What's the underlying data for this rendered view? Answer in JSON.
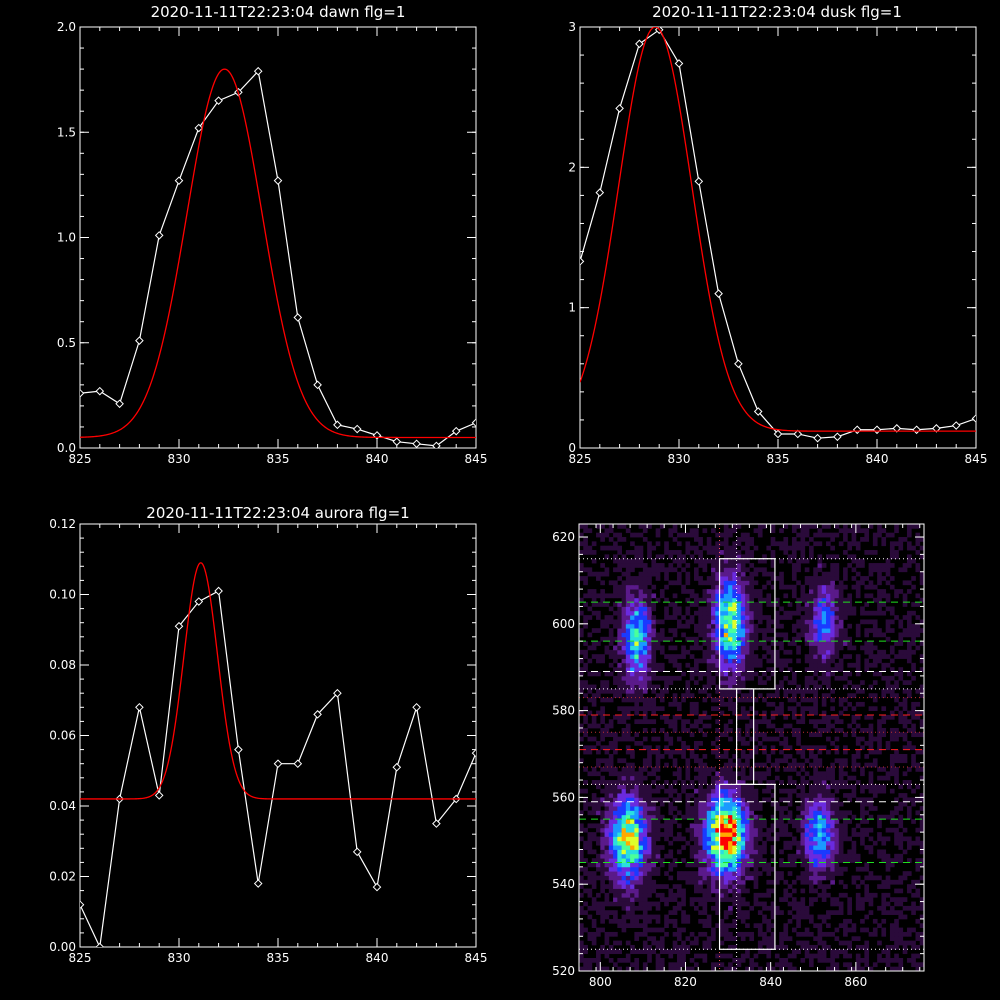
{
  "chart_data": [
    {
      "type": "line",
      "title": "2020-11-11T22:23:04 dawn flg=1",
      "xlim": [
        825,
        845
      ],
      "ylim": [
        0,
        2.0
      ],
      "xticks": [
        "825",
        "830",
        "835",
        "840",
        "845"
      ],
      "xtick_values": [
        825,
        830,
        835,
        840,
        845
      ],
      "yticks": [
        "0.0",
        "0.5",
        "1.0",
        "1.5",
        "2.0"
      ],
      "ytick_values": [
        0,
        0.5,
        1.0,
        1.5,
        2.0
      ],
      "series": [
        {
          "style": "data-diamonds",
          "color": "#ffffff",
          "x": [
            825,
            826,
            827,
            828,
            829,
            830,
            831,
            832,
            833,
            834,
            835,
            836,
            837,
            838,
            839,
            840,
            841,
            842,
            843,
            844,
            845
          ],
          "y": [
            0.26,
            0.27,
            0.21,
            0.51,
            1.01,
            1.27,
            1.52,
            1.65,
            1.69,
            1.79,
            1.27,
            0.62,
            0.3,
            0.11,
            0.09,
            0.06,
            0.03,
            0.02,
            0.01,
            0.08,
            0.12
          ]
        },
        {
          "style": "fit-curve",
          "color": "#ff0000",
          "fit": {
            "amplitude": 1.75,
            "center": 832.3,
            "sigma": 1.9,
            "baseline": 0.05
          },
          "x_range": [
            825,
            845
          ]
        }
      ]
    },
    {
      "type": "line",
      "title": "2020-11-11T22:23:04 dusk flg=1",
      "xlim": [
        825,
        845
      ],
      "ylim": [
        0,
        3
      ],
      "xticks": [
        "825",
        "830",
        "835",
        "840",
        "845"
      ],
      "xtick_values": [
        825,
        830,
        835,
        840,
        845
      ],
      "yticks": [
        "0",
        "1",
        "2",
        "3"
      ],
      "ytick_values": [
        0,
        1,
        2,
        3
      ],
      "series": [
        {
          "style": "data-diamonds",
          "color": "#ffffff",
          "x": [
            825,
            826,
            827,
            828,
            829,
            830,
            831,
            832,
            833,
            834,
            835,
            836,
            837,
            838,
            839,
            840,
            841,
            842,
            843,
            844,
            845
          ],
          "y": [
            1.33,
            1.82,
            2.42,
            2.88,
            2.98,
            2.74,
            1.9,
            1.1,
            0.6,
            0.26,
            0.1,
            0.1,
            0.07,
            0.08,
            0.13,
            0.13,
            0.14,
            0.13,
            0.14,
            0.16,
            0.21
          ]
        },
        {
          "style": "fit-curve",
          "color": "#ff0000",
          "fit": {
            "amplitude": 2.88,
            "center": 828.8,
            "sigma": 1.85,
            "baseline": 0.12
          },
          "x_range": [
            825,
            845
          ]
        }
      ]
    },
    {
      "type": "line",
      "title": "2020-11-11T22:23:04 aurora flg=1",
      "xlim": [
        825,
        845
      ],
      "ylim": [
        0,
        0.12
      ],
      "xticks": [
        "825",
        "830",
        "835",
        "840",
        "845"
      ],
      "xtick_values": [
        825,
        830,
        835,
        840,
        845
      ],
      "yticks": [
        "0.00",
        "0.02",
        "0.04",
        "0.06",
        "0.08",
        "0.10",
        "0.12"
      ],
      "ytick_values": [
        0,
        0.02,
        0.04,
        0.06,
        0.08,
        0.1,
        0.12
      ],
      "series": [
        {
          "style": "data-diamonds",
          "color": "#ffffff",
          "x": [
            825,
            826,
            827,
            828,
            829,
            830,
            831,
            832,
            833,
            834,
            835,
            836,
            837,
            838,
            839,
            840,
            841,
            842,
            843,
            844,
            845
          ],
          "y": [
            0.012,
            0.0,
            0.042,
            0.068,
            0.043,
            0.091,
            0.098,
            0.101,
            0.056,
            0.018,
            0.052,
            0.052,
            0.066,
            0.072,
            0.027,
            0.017,
            0.051,
            0.068,
            0.035,
            0.042,
            0.055
          ]
        },
        {
          "style": "fit-curve",
          "color": "#ff0000",
          "fit": {
            "amplitude": 0.067,
            "center": 831.1,
            "sigma": 0.85,
            "baseline": 0.042
          },
          "x_range": [
            825,
            845
          ]
        }
      ]
    },
    {
      "type": "heatmap",
      "xlim": [
        795,
        876
      ],
      "ylim": [
        520,
        623
      ],
      "xticks": [
        "800",
        "820",
        "840",
        "860"
      ],
      "xtick_values": [
        800,
        820,
        840,
        860
      ],
      "yticks": [
        "520",
        "540",
        "560",
        "580",
        "600",
        "620"
      ],
      "ytick_values": [
        520,
        540,
        560,
        580,
        600,
        620
      ],
      "colormap": [
        "#000000",
        "#2a0a3a",
        "#5a1a8a",
        "#6a2adf",
        "#1a3aff",
        "#1a9aff",
        "#2adfdf",
        "#4aff9a",
        "#dfff2a",
        "#ffaa00",
        "#ff0000"
      ],
      "blobs": [
        {
          "x": 808,
          "y": 596,
          "sx": 2.2,
          "sy": 6.5,
          "peak": 0.55
        },
        {
          "x": 830,
          "y": 600,
          "sx": 2.5,
          "sy": 7.0,
          "peak": 0.72
        },
        {
          "x": 852,
          "y": 600,
          "sx": 2.2,
          "sy": 5.5,
          "peak": 0.38
        },
        {
          "x": 806,
          "y": 550,
          "sx": 3.0,
          "sy": 6.5,
          "peak": 0.75
        },
        {
          "x": 829,
          "y": 551,
          "sx": 3.2,
          "sy": 6.0,
          "peak": 1.0
        },
        {
          "x": 851,
          "y": 551,
          "sx": 2.5,
          "sy": 5.5,
          "peak": 0.5
        }
      ],
      "overlays": {
        "hlines_white_dotted": [
          525,
          563,
          585,
          615
        ],
        "hlines_white_dashed": [
          559,
          589
        ],
        "hlines_green_dashed": [
          545,
          555,
          596,
          605
        ],
        "hlines_red_dashed": [
          571,
          579
        ],
        "hlines_red_dotted": [
          563,
          567,
          575,
          583
        ],
        "vlines_dotted": [
          {
            "x": 828,
            "color": "#ff6060"
          },
          {
            "x": 832,
            "color": "#ffffff"
          }
        ],
        "boxes_white": [
          {
            "x0": 828,
            "x1": 841,
            "y0": 525,
            "y1": 563
          },
          {
            "x0": 828,
            "x1": 841,
            "y0": 585,
            "y1": 615
          },
          {
            "x0": 832,
            "x1": 836,
            "y0": 563,
            "y1": 585
          }
        ]
      }
    }
  ]
}
